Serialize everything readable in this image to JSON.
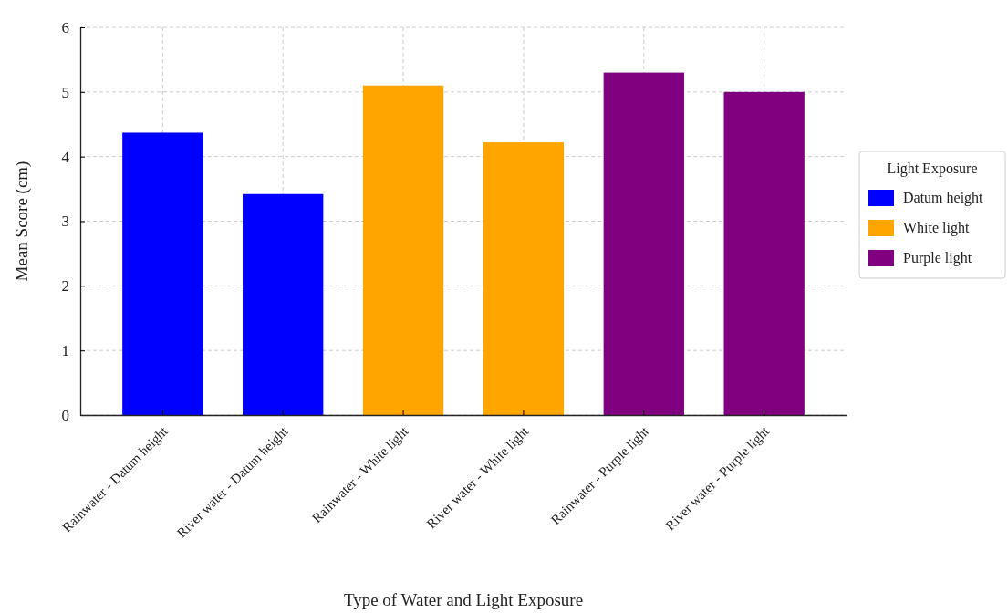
{
  "chart_data": {
    "type": "bar",
    "xlabel": "Type of Water and Light Exposure",
    "ylabel": "Mean Score (cm)",
    "legend_title": "Light Exposure",
    "categories": [
      "Rainwater - Datum height",
      "River water - Datum height",
      "Rainwater - White light",
      "River water - White light",
      "Rainwater - Purple light",
      "River water - Purple light"
    ],
    "series": [
      {
        "name": "Datum height",
        "color": "#0000ff",
        "values": [
          4.37,
          3.42,
          null,
          null,
          null,
          null
        ]
      },
      {
        "name": "White light",
        "color": "#ffa500",
        "values": [
          null,
          null,
          5.1,
          4.22,
          null,
          null
        ]
      },
      {
        "name": "Purple light",
        "color": "#800080",
        "values": [
          null,
          null,
          null,
          null,
          5.3,
          5.0
        ]
      }
    ],
    "stacked": true,
    "ylim": [
      0,
      6
    ],
    "yticks": [
      0,
      1,
      2,
      3,
      4,
      5,
      6
    ],
    "grid": true,
    "legend": "right"
  }
}
